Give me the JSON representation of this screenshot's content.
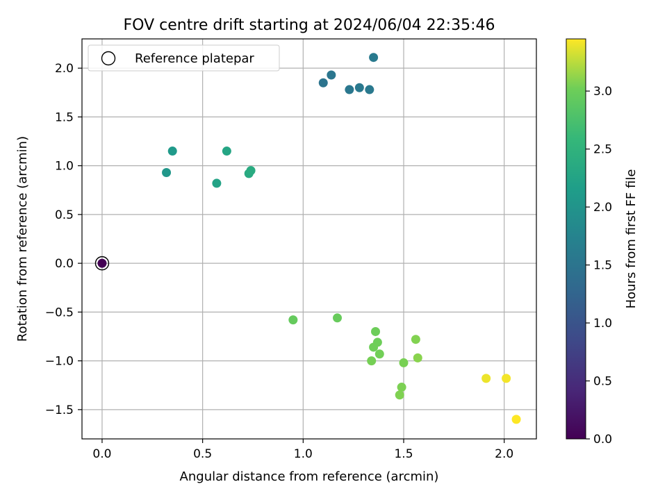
{
  "chart_data": {
    "type": "scatter",
    "title": "FOV centre drift starting at 2024/06/04 22:35:46",
    "xlabel": "Angular distance from reference (arcmin)",
    "ylabel": "Rotation from reference (arcmin)",
    "xlim": [
      -0.1,
      2.16
    ],
    "ylim": [
      -1.8,
      2.3
    ],
    "xticks": [
      0.0,
      0.5,
      1.0,
      1.5,
      2.0
    ],
    "xtick_labels": [
      "0.0",
      "0.5",
      "1.0",
      "1.5",
      "2.0"
    ],
    "yticks": [
      -1.5,
      -1.0,
      -0.5,
      0.0,
      0.5,
      1.0,
      1.5,
      2.0
    ],
    "ytick_labels": [
      "−1.5",
      "−1.0",
      "−0.5",
      "0.0",
      "0.5",
      "1.0",
      "1.5",
      "2.0"
    ],
    "grid": true,
    "legend": {
      "placement": "top-left",
      "entries": [
        "Reference platepar"
      ]
    },
    "colorbar": {
      "label": "Hours from first FF file",
      "colormap": "viridis",
      "range": [
        0.0,
        3.45
      ],
      "ticks": [
        0.0,
        0.5,
        1.0,
        1.5,
        2.0,
        2.5,
        3.0
      ],
      "tick_labels": [
        "0.0",
        "0.5",
        "1.0",
        "1.5",
        "2.0",
        "2.5",
        "3.0"
      ]
    },
    "reference": {
      "x": 0.0,
      "y": 0.0
    },
    "points": [
      {
        "x": 0.0,
        "y": 0.0,
        "c": 0.0
      },
      {
        "x": 1.1,
        "y": 1.85,
        "c": 1.5
      },
      {
        "x": 1.14,
        "y": 1.93,
        "c": 1.52
      },
      {
        "x": 1.23,
        "y": 1.78,
        "c": 1.55
      },
      {
        "x": 1.28,
        "y": 1.8,
        "c": 1.57
      },
      {
        "x": 1.33,
        "y": 1.78,
        "c": 1.58
      },
      {
        "x": 1.35,
        "y": 2.11,
        "c": 1.6
      },
      {
        "x": 0.32,
        "y": 0.93,
        "c": 2.05
      },
      {
        "x": 0.35,
        "y": 1.15,
        "c": 2.1
      },
      {
        "x": 0.57,
        "y": 0.82,
        "c": 2.25
      },
      {
        "x": 0.62,
        "y": 1.15,
        "c": 2.28
      },
      {
        "x": 0.73,
        "y": 0.92,
        "c": 2.35
      },
      {
        "x": 0.74,
        "y": 0.95,
        "c": 2.38
      },
      {
        "x": 0.95,
        "y": -0.58,
        "c": 2.95
      },
      {
        "x": 1.17,
        "y": -0.56,
        "c": 2.97
      },
      {
        "x": 1.36,
        "y": -0.7,
        "c": 3.0
      },
      {
        "x": 1.37,
        "y": -0.81,
        "c": 3.01
      },
      {
        "x": 1.35,
        "y": -0.86,
        "c": 3.02
      },
      {
        "x": 1.38,
        "y": -0.93,
        "c": 3.03
      },
      {
        "x": 1.34,
        "y": -1.0,
        "c": 3.04
      },
      {
        "x": 1.5,
        "y": -1.02,
        "c": 3.05
      },
      {
        "x": 1.49,
        "y": -1.27,
        "c": 3.06
      },
      {
        "x": 1.48,
        "y": -1.35,
        "c": 3.07
      },
      {
        "x": 1.56,
        "y": -0.78,
        "c": 3.08
      },
      {
        "x": 1.57,
        "y": -0.97,
        "c": 3.1
      },
      {
        "x": 1.91,
        "y": -1.18,
        "c": 3.4
      },
      {
        "x": 2.01,
        "y": -1.18,
        "c": 3.42
      },
      {
        "x": 2.06,
        "y": -1.6,
        "c": 3.45
      }
    ]
  }
}
